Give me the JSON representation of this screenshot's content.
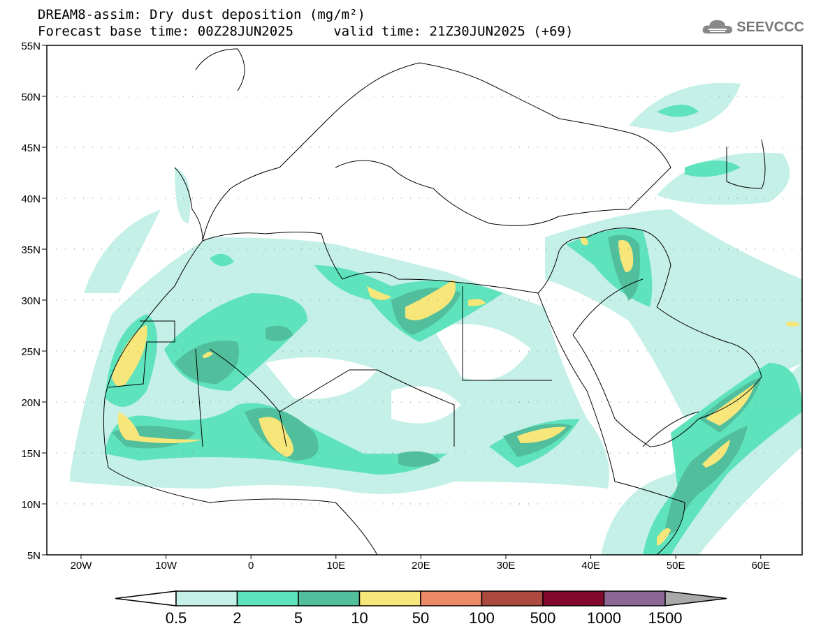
{
  "header": {
    "title": "DREAM8-assim: Dry dust deposition (mg/m²)",
    "subtitle": "Forecast base time: 00Z28JUN2025     valid time: 21Z30JUN2025 (+69)",
    "logo_text": "SEEVCCC"
  },
  "map": {
    "lon_range": [
      -25,
      65
    ],
    "lat_range": [
      5,
      55
    ],
    "lat_labels": [
      "55N",
      "50N",
      "45N",
      "40N",
      "35N",
      "30N",
      "25N",
      "20N",
      "15N",
      "10N",
      "5N"
    ],
    "lon_labels": [
      "20W",
      "10W",
      "0",
      "10E",
      "20E",
      "30E",
      "40E",
      "50E",
      "60E"
    ]
  },
  "colorbar": {
    "labels": [
      "0.5",
      "2",
      "5",
      "10",
      "50",
      "100",
      "500",
      "1000",
      "1500"
    ],
    "colors": [
      "#ffffff",
      "#c4f0e8",
      "#5ee3bd",
      "#52bf9c",
      "#f7e77a",
      "#ec8a68",
      "#ad4a40",
      "#830a2e",
      "#8d6897",
      "#a9a9a9"
    ]
  }
}
